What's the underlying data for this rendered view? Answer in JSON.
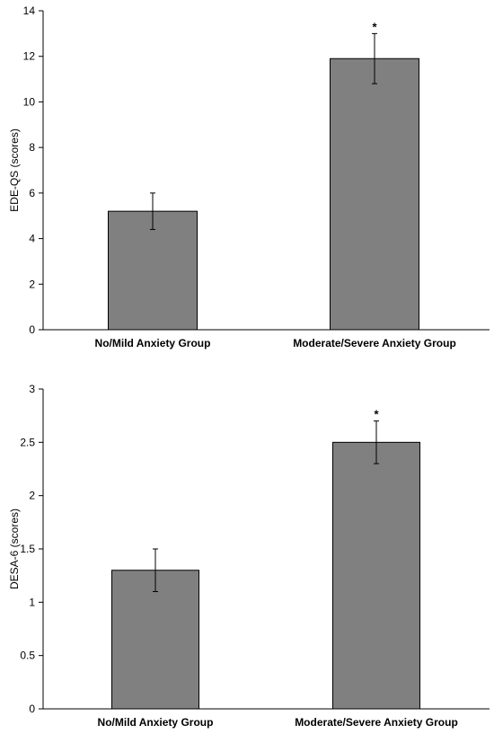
{
  "chart_data": [
    {
      "type": "bar",
      "categories": [
        "No/Mild Anxiety Group",
        "Moderate/Severe Anxiety Group"
      ],
      "values": [
        5.2,
        11.9
      ],
      "error": [
        0.8,
        1.1
      ],
      "significance": [
        "",
        "*"
      ],
      "ylabel": "EDE-QS  (scores)",
      "ylim": [
        0,
        14
      ],
      "yticks": [
        0,
        2,
        4,
        6,
        8,
        10,
        12,
        14
      ],
      "ytick_labels": [
        "0",
        "2",
        "4",
        "6",
        "8",
        "10",
        "12",
        "14"
      ],
      "bar_color": "#808080",
      "grid": false
    },
    {
      "type": "bar",
      "categories": [
        "No/Mild Anxiety Group",
        "Moderate/Severe Anxiety Group"
      ],
      "values": [
        1.3,
        2.5
      ],
      "error": [
        0.2,
        0.2
      ],
      "significance": [
        "",
        "*"
      ],
      "ylabel": "DESA-6  (scores)",
      "ylim": [
        0,
        3
      ],
      "yticks": [
        0,
        0.5,
        1,
        1.5,
        2,
        2.5,
        3
      ],
      "ytick_labels": [
        "0",
        "0.5",
        "1",
        "1.5",
        "2",
        "2.5",
        "3"
      ],
      "bar_color": "#808080",
      "grid": false
    }
  ]
}
